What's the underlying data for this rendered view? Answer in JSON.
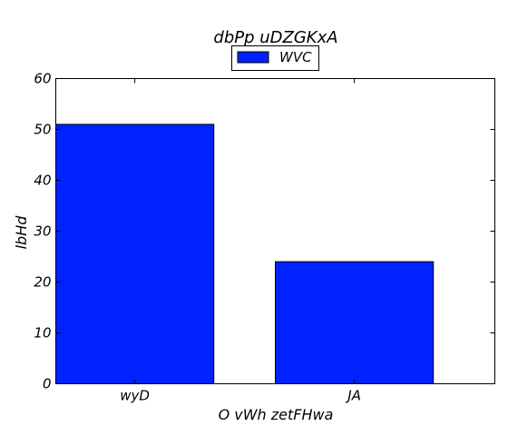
{
  "chart_data": {
    "type": "bar",
    "title": "dbPp uDZGKxA",
    "xlabel": "O  vWh zetFHwa",
    "ylabel": "lbHd",
    "categories": [
      "wyD",
      "JA"
    ],
    "series": [
      {
        "name": "WVC",
        "values": [
          51,
          24
        ],
        "color": "#0022ff"
      }
    ],
    "ylim": [
      0,
      60
    ],
    "yticks": [
      0,
      10,
      20,
      30,
      40,
      50,
      60
    ],
    "grid": false,
    "legend": "top-center"
  }
}
